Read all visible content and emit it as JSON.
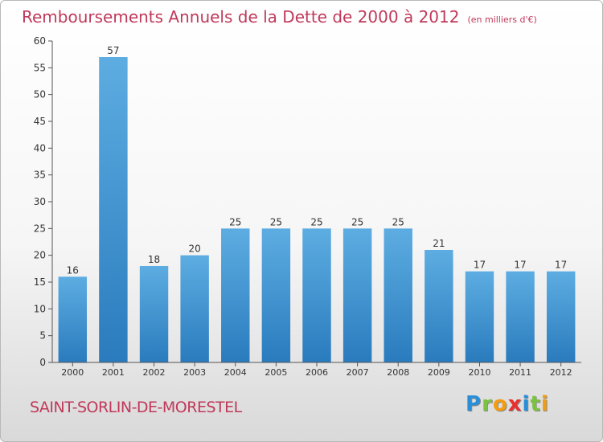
{
  "chart_data": {
    "type": "bar",
    "title": "Remboursements Annuels de la Dette de 2000 à 2012",
    "subtitle": "(en milliers d'€)",
    "xlabel": "",
    "ylabel": "",
    "categories": [
      "2000",
      "2001",
      "2002",
      "2003",
      "2004",
      "2005",
      "2006",
      "2007",
      "2008",
      "2009",
      "2010",
      "2011",
      "2012"
    ],
    "values": [
      16,
      57,
      18,
      20,
      25,
      25,
      25,
      25,
      25,
      21,
      17,
      17,
      17
    ],
    "ylim": [
      0,
      60
    ],
    "yticks": [
      0,
      5,
      10,
      15,
      20,
      25,
      30,
      35,
      40,
      45,
      50,
      55,
      60
    ],
    "grid": false,
    "data_labels": true,
    "colors": {
      "bar_top": "#5dade2",
      "bar_bottom": "#2a7bbd",
      "title": "#c0395a",
      "axis": "#555555"
    }
  },
  "footer": {
    "commune": "SAINT-SORLIN-DE-MORESTEL",
    "logo_letters": [
      {
        "ch": "P",
        "color": "#2a8fd6"
      },
      {
        "ch": "r",
        "color": "#7cc242"
      },
      {
        "ch": "o",
        "color": "#f39c12"
      },
      {
        "ch": "x",
        "color": "#e8312f"
      },
      {
        "ch": "i",
        "color": "#2a8fd6"
      },
      {
        "ch": "t",
        "color": "#7cc242"
      },
      {
        "ch": "i",
        "color": "#f39c12"
      }
    ]
  }
}
